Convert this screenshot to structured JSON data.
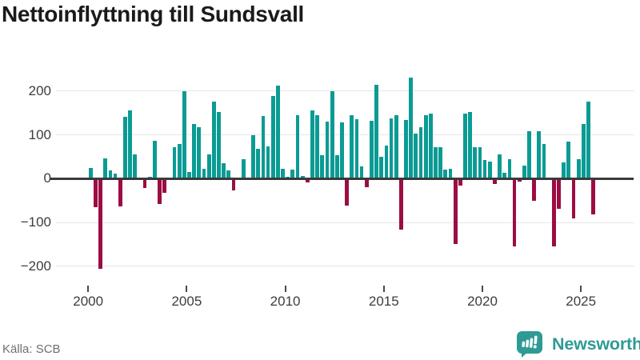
{
  "title": "Nettoinflyttning till Sundsvall",
  "source": "Källa: SCB",
  "branding": {
    "name": "Newsworthy",
    "icon": "newsworthy-speech-bubble-bar-chart-icon"
  },
  "colors": {
    "positive_bar": "#0a9b94",
    "negative_bar": "#9c0d43",
    "logo_teal": "#2f9a95",
    "axis_text": "#3d3d3d",
    "zero_line": "#3a3a3a",
    "gridline": "#e7e7e7",
    "title_text": "#1a1a1a",
    "source_text": "#6e6e76"
  },
  "chart_data": {
    "type": "bar",
    "title": "Nettoinflyttning till Sundsvall",
    "xlabel": "",
    "ylabel": "",
    "frequency": "quarterly",
    "start": "2000Q1",
    "end": "2025Q3",
    "x_tick_labels": [
      "2000",
      "2005",
      "2010",
      "2015",
      "2020",
      "2025"
    ],
    "y_ticks": [
      200,
      100,
      0,
      -100,
      -200
    ],
    "ylim": [
      -225,
      245
    ],
    "grid": "horizontal",
    "legend": "none",
    "values": [
      24,
      -65,
      -205,
      47,
      18,
      12,
      -63,
      142,
      156,
      56,
      0,
      -22,
      5,
      86,
      -58,
      -33,
      0,
      71,
      79,
      199,
      15,
      124,
      118,
      22,
      56,
      175,
      153,
      36,
      19,
      -26,
      0,
      45,
      0,
      100,
      69,
      143,
      74,
      189,
      213,
      23,
      4,
      21,
      144,
      6,
      -9,
      155,
      145,
      54,
      130,
      199,
      54,
      128,
      -61,
      144,
      136,
      28,
      -20,
      132,
      214,
      50,
      75,
      137,
      145,
      -116,
      133,
      230,
      103,
      118,
      144,
      148,
      72,
      72,
      21,
      23,
      -150,
      -15,
      148,
      152,
      72,
      72,
      42,
      38,
      -13,
      55,
      14,
      45,
      -155,
      -7,
      29,
      109,
      -50,
      109,
      80,
      0,
      -155,
      -69,
      37,
      85,
      -90,
      44,
      125,
      175,
      -82
    ]
  }
}
